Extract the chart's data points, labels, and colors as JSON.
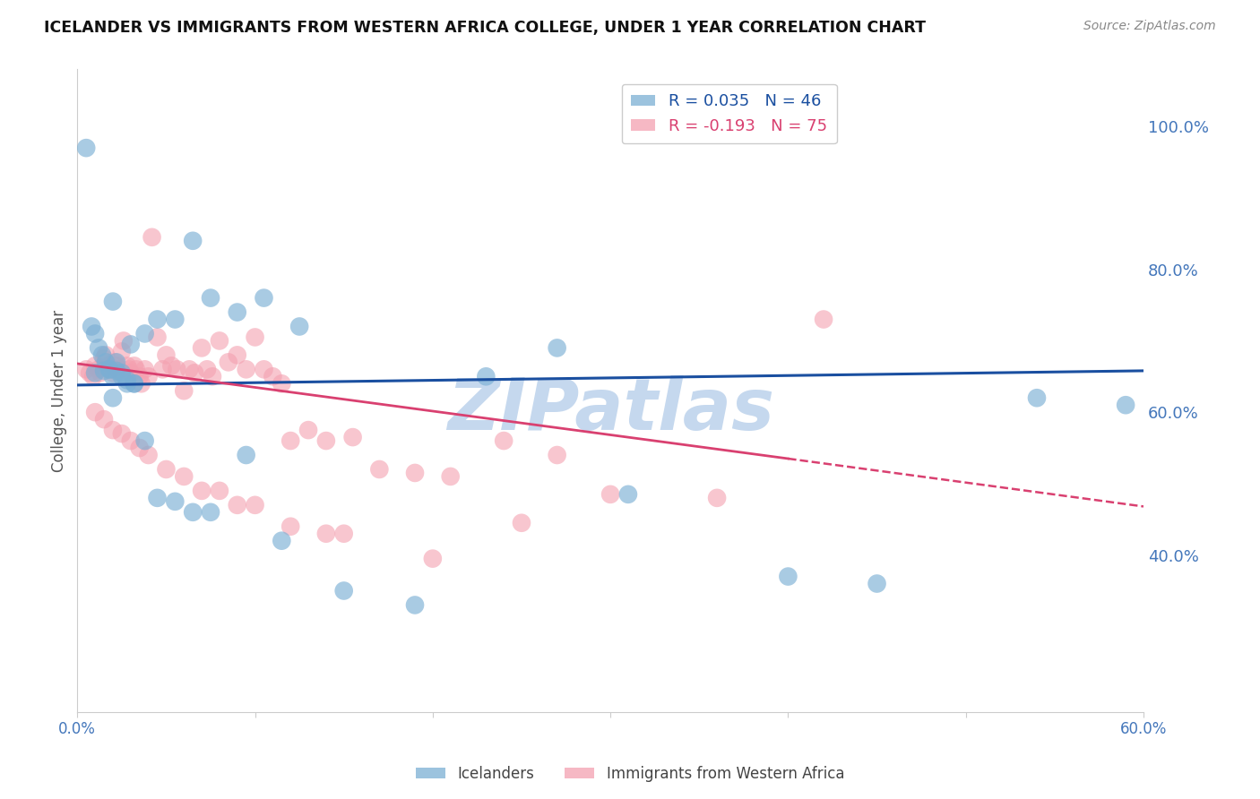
{
  "title": "ICELANDER VS IMMIGRANTS FROM WESTERN AFRICA COLLEGE, UNDER 1 YEAR CORRELATION CHART",
  "source": "Source: ZipAtlas.com",
  "ylabel": "College, Under 1 year",
  "xlim": [
    0.0,
    0.6
  ],
  "ylim": [
    0.18,
    1.08
  ],
  "yticks": [
    0.4,
    0.6,
    0.8,
    1.0
  ],
  "ytick_labels": [
    "40.0%",
    "60.0%",
    "80.0%",
    "100.0%"
  ],
  "xticks": [
    0.0,
    0.1,
    0.2,
    0.3,
    0.4,
    0.5,
    0.6
  ],
  "xtick_labels": [
    "0.0%",
    "",
    "",
    "",
    "",
    "",
    "60.0%"
  ],
  "icelanders_color": "#7bafd4",
  "immigrants_color": "#f4a0b0",
  "blue_line_color": "#1a4fa0",
  "pink_line_color": "#d94070",
  "watermark": "ZIPatlas",
  "watermark_color": "#c5d8ee",
  "background_color": "#ffffff",
  "grid_color": "#d8d8d8",
  "title_color": "#111111",
  "source_color": "#888888",
  "ylabel_color": "#555555",
  "tick_label_color": "#4477bb",
  "title_fontsize": 12.5,
  "icelanders_x": [
    0.005,
    0.008,
    0.01,
    0.012,
    0.014,
    0.016,
    0.018,
    0.02,
    0.022,
    0.025,
    0.028,
    0.032,
    0.038,
    0.045,
    0.055,
    0.065,
    0.075,
    0.09,
    0.105,
    0.125,
    0.01,
    0.015,
    0.018,
    0.02,
    0.022,
    0.025,
    0.028,
    0.032,
    0.038,
    0.045,
    0.055,
    0.065,
    0.075,
    0.095,
    0.115,
    0.15,
    0.19,
    0.23,
    0.27,
    0.31,
    0.4,
    0.45,
    0.54,
    0.59,
    0.02,
    0.03
  ],
  "icelanders_y": [
    0.97,
    0.72,
    0.71,
    0.69,
    0.68,
    0.67,
    0.66,
    0.65,
    0.67,
    0.65,
    0.64,
    0.64,
    0.71,
    0.73,
    0.73,
    0.84,
    0.76,
    0.74,
    0.76,
    0.72,
    0.655,
    0.658,
    0.66,
    0.62,
    0.658,
    0.655,
    0.645,
    0.64,
    0.56,
    0.48,
    0.475,
    0.46,
    0.46,
    0.54,
    0.42,
    0.35,
    0.33,
    0.65,
    0.69,
    0.485,
    0.37,
    0.36,
    0.62,
    0.61,
    0.755,
    0.695
  ],
  "immigrants_x": [
    0.005,
    0.007,
    0.009,
    0.01,
    0.012,
    0.013,
    0.015,
    0.016,
    0.018,
    0.019,
    0.02,
    0.021,
    0.022,
    0.023,
    0.025,
    0.026,
    0.028,
    0.029,
    0.03,
    0.032,
    0.033,
    0.035,
    0.036,
    0.038,
    0.04,
    0.042,
    0.045,
    0.048,
    0.05,
    0.053,
    0.056,
    0.06,
    0.063,
    0.066,
    0.07,
    0.073,
    0.076,
    0.08,
    0.085,
    0.09,
    0.095,
    0.1,
    0.105,
    0.11,
    0.115,
    0.12,
    0.13,
    0.14,
    0.155,
    0.17,
    0.19,
    0.21,
    0.24,
    0.27,
    0.01,
    0.015,
    0.02,
    0.025,
    0.03,
    0.035,
    0.04,
    0.05,
    0.06,
    0.07,
    0.08,
    0.09,
    0.1,
    0.12,
    0.15,
    0.2,
    0.3,
    0.36,
    0.42,
    0.14,
    0.25
  ],
  "immigrants_y": [
    0.66,
    0.655,
    0.65,
    0.665,
    0.66,
    0.655,
    0.675,
    0.68,
    0.665,
    0.66,
    0.655,
    0.67,
    0.665,
    0.66,
    0.685,
    0.7,
    0.665,
    0.66,
    0.655,
    0.665,
    0.66,
    0.65,
    0.64,
    0.66,
    0.65,
    0.845,
    0.705,
    0.66,
    0.68,
    0.665,
    0.66,
    0.63,
    0.66,
    0.655,
    0.69,
    0.66,
    0.65,
    0.7,
    0.67,
    0.68,
    0.66,
    0.705,
    0.66,
    0.65,
    0.64,
    0.56,
    0.575,
    0.56,
    0.565,
    0.52,
    0.515,
    0.51,
    0.56,
    0.54,
    0.6,
    0.59,
    0.575,
    0.57,
    0.56,
    0.55,
    0.54,
    0.52,
    0.51,
    0.49,
    0.49,
    0.47,
    0.47,
    0.44,
    0.43,
    0.395,
    0.485,
    0.48,
    0.73,
    0.43,
    0.445
  ],
  "blue_line": {
    "x0": 0.0,
    "y0": 0.638,
    "x1": 0.6,
    "y1": 0.658
  },
  "pink_solid_line": {
    "x0": 0.0,
    "y0": 0.668,
    "x1": 0.4,
    "y1": 0.535
  },
  "pink_dashed_line": {
    "x0": 0.4,
    "y0": 0.535,
    "x1": 0.6,
    "y1": 0.468
  }
}
